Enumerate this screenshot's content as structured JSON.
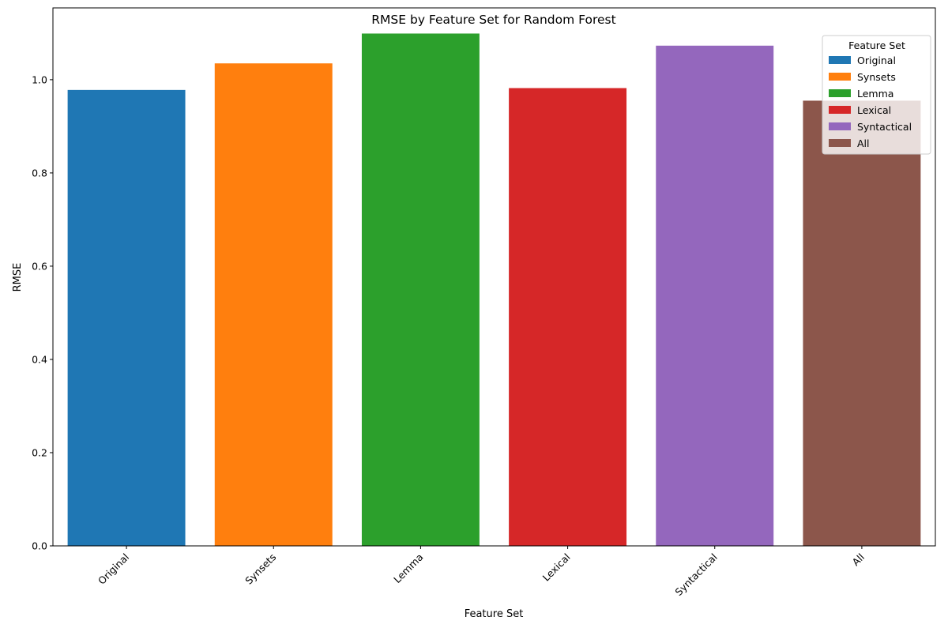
{
  "chart_data": {
    "type": "bar",
    "title": "RMSE by Feature Set for Random Forest",
    "xlabel": "Feature Set",
    "ylabel": "RMSE",
    "categories": [
      "Original",
      "Synsets",
      "Lemma",
      "Lexical",
      "Syntactical",
      "All"
    ],
    "values": [
      0.978,
      1.035,
      1.099,
      0.982,
      1.073,
      0.955
    ],
    "colors": [
      "#1f77b4",
      "#ff7f0e",
      "#2ca02c",
      "#d62728",
      "#9467bd",
      "#8c564b"
    ],
    "ylim": [
      0,
      1.154
    ],
    "yticks": [
      0.0,
      0.2,
      0.4,
      0.6,
      0.8,
      1.0
    ],
    "ytick_labels": [
      "0.0",
      "0.2",
      "0.4",
      "0.6",
      "0.8",
      "1.0"
    ],
    "grid": false,
    "legend": {
      "title": "Feature Set",
      "placement": "top-right",
      "entries": [
        "Original",
        "Synsets",
        "Lemma",
        "Lexical",
        "Syntactical",
        "All"
      ]
    }
  }
}
